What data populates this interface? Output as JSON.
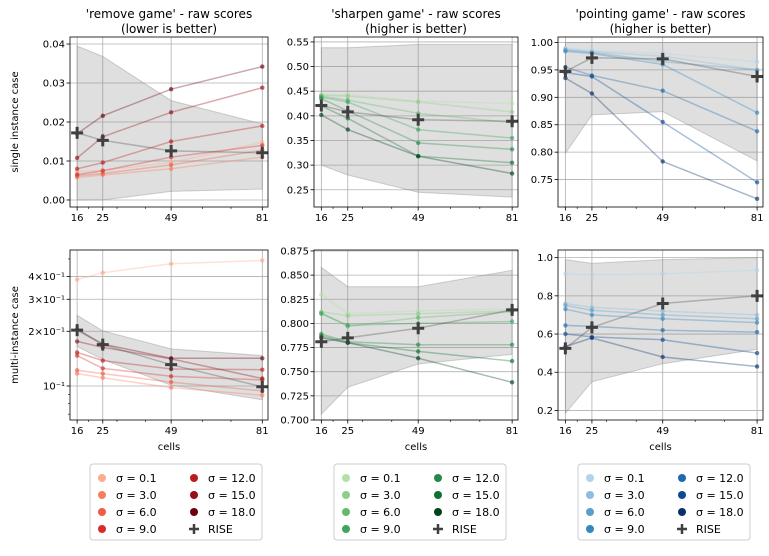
{
  "chart_data": {
    "type": "line",
    "x": [
      16,
      25,
      49,
      81
    ],
    "xlabel": "cells",
    "row_labels": [
      "single instance case",
      "multi-instance case"
    ],
    "sigma_values": [
      "0.1",
      "3.0",
      "6.0",
      "9.0",
      "12.0",
      "15.0",
      "18.0"
    ],
    "rise_label": "RISE",
    "games": [
      {
        "name": "remove",
        "title_line1": "'remove game' - raw scores",
        "title_line2": "(lower is better)",
        "colors": [
          "#fcab8f",
          "#f9805d",
          "#f05b43",
          "#d72c2a",
          "#b91c1c",
          "#940f18",
          "#6a020e"
        ],
        "panels": [
          {
            "scale": "linear",
            "ylim": [
              -0.0018,
              0.0418
            ],
            "ytick_values": [
              0.0,
              0.01,
              0.02,
              0.03,
              0.04
            ],
            "ytick_labels": [
              "0.00",
              "0.01",
              "0.02",
              "0.03",
              "0.04"
            ],
            "series": [
              {
                "name": "σ = 0.1",
                "values": [
                  0.0072,
                  0.0076,
                  0.0096,
                  0.0148
                ]
              },
              {
                "name": "σ = 3.0",
                "values": [
                  0.0058,
                  0.0064,
                  0.008,
                  0.011
                ]
              },
              {
                "name": "σ = 6.0",
                "values": [
                  0.0062,
                  0.0068,
                  0.009,
                  0.0128
                ]
              },
              {
                "name": "σ = 9.0",
                "values": [
                  0.0065,
                  0.0075,
                  0.011,
                  0.014
                ]
              },
              {
                "name": "σ = 12.0",
                "values": [
                  0.008,
                  0.0096,
                  0.015,
                  0.019
                ]
              },
              {
                "name": "σ = 15.0",
                "values": [
                  0.0108,
                  0.0162,
                  0.0225,
                  0.0288
                ]
              },
              {
                "name": "σ = 18.0",
                "values": [
                  0.017,
                  0.0216,
                  0.0284,
                  0.0342
                ]
              }
            ],
            "rise": [
              0.0172,
              0.0153,
              0.0126,
              0.0121
            ],
            "band_upper": [
              0.0395,
              0.0368,
              0.0255,
              0.0195
            ],
            "band_lower": [
              0.0,
              0.0,
              0.0022,
              0.0028
            ]
          },
          {
            "scale": "log",
            "ylim": [
              0.065,
              0.56
            ],
            "ytick_values": [
              0.1,
              0.2,
              0.3,
              0.4
            ],
            "ytick_labels": [
              "10⁻¹",
              "2×10⁻¹",
              "3×10⁻¹",
              "4×10⁻¹"
            ],
            "series": [
              {
                "name": "σ = 0.1",
                "values": [
                  0.385,
                  0.42,
                  0.47,
                  0.49
                ]
              },
              {
                "name": "σ = 3.0",
                "values": [
                  0.117,
                  0.111,
                  0.098,
                  0.089
                ]
              },
              {
                "name": "σ = 6.0",
                "values": [
                  0.122,
                  0.117,
                  0.105,
                  0.094
                ]
              },
              {
                "name": "σ = 9.0",
                "values": [
                  0.147,
                  0.125,
                  0.113,
                  0.108
                ]
              },
              {
                "name": "σ = 12.0",
                "values": [
                  0.153,
                  0.138,
                  0.124,
                  0.123
                ]
              },
              {
                "name": "σ = 15.0",
                "values": [
                  0.176,
                  0.163,
                  0.141,
                  0.11
                ]
              },
              {
                "name": "σ = 18.0",
                "values": [
                  0.205,
                  0.17,
                  0.142,
                  0.142
                ]
              }
            ],
            "rise": [
              0.203,
              0.169,
              0.131,
              0.099
            ],
            "band_upper": [
              0.245,
              0.201,
              0.16,
              0.147
            ],
            "band_lower": [
              0.165,
              0.14,
              0.101,
              0.084
            ]
          }
        ]
      },
      {
        "name": "sharpen",
        "title_line1": "'sharpen game' - raw scores",
        "title_line2": "(higher is better)",
        "colors": [
          "#b3e0a6",
          "#8ece88",
          "#64b96a",
          "#3da55d",
          "#238b45",
          "#0d7230",
          "#00441b"
        ],
        "panels": [
          {
            "scale": "linear",
            "ylim": [
              0.215,
              0.56
            ],
            "ytick_values": [
              0.25,
              0.3,
              0.35,
              0.4,
              0.45,
              0.5,
              0.55
            ],
            "ytick_labels": [
              "0.25",
              "0.30",
              "0.35",
              "0.40",
              "0.45",
              "0.50",
              "0.55"
            ],
            "series": [
              {
                "name": "σ = 0.1",
                "values": [
                  0.443,
                  0.443,
                  0.43,
                  0.425
                ]
              },
              {
                "name": "σ = 3.0",
                "values": [
                  0.442,
                  0.44,
                  0.428,
                  0.408
                ]
              },
              {
                "name": "σ = 6.0",
                "values": [
                  0.44,
                  0.432,
                  0.405,
                  0.386
                ]
              },
              {
                "name": "σ = 9.0",
                "values": [
                  0.438,
                  0.428,
                  0.372,
                  0.355
                ]
              },
              {
                "name": "σ = 12.0",
                "values": [
                  0.435,
                  0.41,
                  0.345,
                  0.332
                ]
              },
              {
                "name": "σ = 15.0",
                "values": [
                  0.42,
                  0.395,
                  0.318,
                  0.305
                ]
              },
              {
                "name": "σ = 18.0",
                "values": [
                  0.402,
                  0.372,
                  0.318,
                  0.283
                ]
              }
            ],
            "rise": [
              0.421,
              0.408,
              0.392,
              0.389
            ],
            "band_upper": [
              0.538,
              0.538,
              0.545,
              0.545
            ],
            "band_lower": [
              0.3,
              0.28,
              0.245,
              0.235
            ]
          },
          {
            "scale": "linear",
            "ylim": [
              0.7,
              0.876
            ],
            "ytick_values": [
              0.7,
              0.725,
              0.75,
              0.775,
              0.8,
              0.825,
              0.85,
              0.875
            ],
            "ytick_labels": [
              "0.700",
              "0.725",
              "0.750",
              "0.775",
              "0.800",
              "0.825",
              "0.850",
              "0.875"
            ],
            "series": [
              {
                "name": "σ = 0.1",
                "values": [
                  0.83,
                  0.81,
                  0.813,
                  0.815
                ]
              },
              {
                "name": "σ = 3.0",
                "values": [
                  0.812,
                  0.808,
                  0.81,
                  0.813
                ]
              },
              {
                "name": "σ = 6.0",
                "values": [
                  0.811,
                  0.797,
                  0.806,
                  0.812
                ]
              },
              {
                "name": "σ = 9.0",
                "values": [
                  0.81,
                  0.798,
                  0.8,
                  0.802
                ]
              },
              {
                "name": "σ = 12.0",
                "values": [
                  0.789,
                  0.781,
                  0.778,
                  0.778
                ]
              },
              {
                "name": "σ = 15.0",
                "values": [
                  0.787,
                  0.78,
                  0.771,
                  0.761
                ]
              },
              {
                "name": "σ = 18.0",
                "values": [
                  0.785,
                  0.78,
                  0.764,
                  0.739
                ]
              }
            ],
            "rise": [
              0.781,
              0.785,
              0.795,
              0.814
            ],
            "band_upper": [
              0.858,
              0.838,
              0.838,
              0.855
            ],
            "band_lower": [
              0.706,
              0.734,
              0.758,
              0.768
            ]
          }
        ]
      },
      {
        "name": "pointing",
        "title_line1": "'pointing game' - raw scores",
        "title_line2": "(higher is better)",
        "colors": [
          "#b3d3e8",
          "#8dbdda",
          "#5c9fcc",
          "#3787c0",
          "#1c6aaf",
          "#0a4a91",
          "#08306b"
        ],
        "panels": [
          {
            "scale": "linear",
            "ylim": [
              0.7,
              1.01
            ],
            "ytick_values": [
              0.75,
              0.8,
              0.85,
              0.9,
              0.95,
              1.0
            ],
            "ytick_labels": [
              "0.75",
              "0.80",
              "0.85",
              "0.90",
              "0.95",
              "1.00"
            ],
            "series": [
              {
                "name": "σ = 0.1",
                "values": [
                  0.99,
                  0.985,
                  0.98,
                  0.965
                ]
              },
              {
                "name": "σ = 3.0",
                "values": [
                  0.988,
                  0.983,
                  0.975,
                  0.95
                ]
              },
              {
                "name": "σ = 6.0",
                "values": [
                  0.986,
                  0.982,
                  0.965,
                  0.95
                ]
              },
              {
                "name": "σ = 9.0",
                "values": [
                  0.984,
                  0.98,
                  0.96,
                  0.872
                ]
              },
              {
                "name": "σ = 12.0",
                "values": [
                  0.955,
                  0.94,
                  0.912,
                  0.838
                ]
              },
              {
                "name": "σ = 15.0",
                "values": [
                  0.945,
                  0.938,
                  0.855,
                  0.745
                ]
              },
              {
                "name": "σ = 18.0",
                "values": [
                  0.935,
                  0.907,
                  0.783,
                  0.715
                ]
              }
            ],
            "rise": [
              0.947,
              0.972,
              0.97,
              0.938
            ],
            "band_upper": [
              1.0,
              1.0,
              1.0,
              1.0
            ],
            "band_lower": [
              0.798,
              0.868,
              0.874,
              0.784
            ]
          },
          {
            "scale": "linear",
            "ylim": [
              0.15,
              1.04
            ],
            "ytick_values": [
              0.2,
              0.4,
              0.6,
              0.8,
              1.0
            ],
            "ytick_labels": [
              "0.2",
              "0.4",
              "0.6",
              "0.8",
              "1.0"
            ],
            "series": [
              {
                "name": "σ = 0.1",
                "values": [
                  0.915,
                  0.91,
                  0.915,
                  0.935
                ]
              },
              {
                "name": "σ = 3.0",
                "values": [
                  0.76,
                  0.74,
                  0.72,
                  0.7
                ]
              },
              {
                "name": "σ = 6.0",
                "values": [
                  0.75,
                  0.725,
                  0.7,
                  0.68
                ]
              },
              {
                "name": "σ = 9.0",
                "values": [
                  0.73,
                  0.7,
                  0.68,
                  0.66
                ]
              },
              {
                "name": "σ = 12.0",
                "values": [
                  0.645,
                  0.64,
                  0.62,
                  0.61
                ]
              },
              {
                "name": "σ = 15.0",
                "values": [
                  0.6,
                  0.585,
                  0.57,
                  0.5
                ]
              },
              {
                "name": "σ = 18.0",
                "values": [
                  0.535,
                  0.58,
                  0.48,
                  0.43
                ]
              }
            ],
            "rise": [
              0.525,
              0.635,
              0.76,
              0.8
            ],
            "band_upper": [
              0.99,
              0.97,
              0.99,
              1.0
            ],
            "band_lower": [
              0.185,
              0.35,
              0.445,
              0.52
            ]
          }
        ]
      }
    ]
  }
}
